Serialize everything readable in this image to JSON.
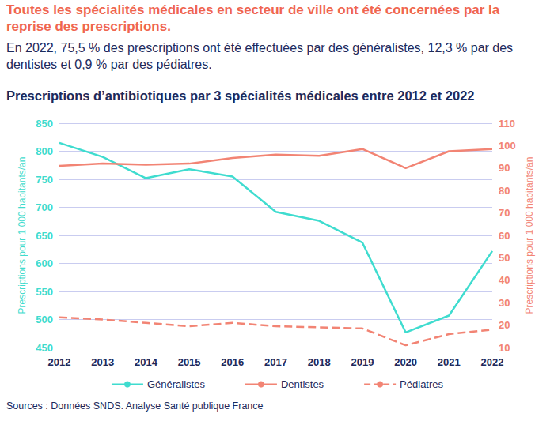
{
  "chart_data": {
    "type": "line",
    "headline": "Toutes les spécialités médicales en secteur de ville ont été concernées par la reprise des prescriptions.",
    "subtitle": "En 2022, 75,5 % des prescriptions ont été effectuées par des généralistes, 12,3 % par des dentistes et 0,9 % par des pédiatres.",
    "title": "Prescriptions d’antibiotiques par 3 spécialités médicales entre 2012 et 2022",
    "source": "Sources : Données SNDS. Analyse Santé publique France",
    "ylabel": "Prescriptions pour 1 000 habitants/an",
    "y2label": "Prescriptions pour 1 000 habitants/an",
    "categories": [
      "2012",
      "2013",
      "2014",
      "2015",
      "2016",
      "2017",
      "2018",
      "2019",
      "2020",
      "2021",
      "2022"
    ],
    "ylim": [
      450,
      850
    ],
    "yticks": [
      450,
      500,
      550,
      600,
      650,
      700,
      750,
      800,
      850
    ],
    "y2lim": [
      10,
      110
    ],
    "y2ticks": [
      10,
      20,
      30,
      40,
      50,
      60,
      70,
      80,
      90,
      100,
      110
    ],
    "grid": true,
    "legend": "bottom",
    "series": [
      {
        "name": "Généralistes",
        "color": "#3fdccf",
        "line_style": "solid",
        "marker": "none",
        "values": [
          815,
          790,
          752,
          768,
          755,
          692,
          676,
          637,
          477,
          507,
          622
        ]
      },
      {
        "name": "Dentistes",
        "color": "#f28474",
        "axis": "y2",
        "line_style": "solid",
        "marker": "none",
        "values": [
          91,
          92,
          91.5,
          92,
          94.5,
          96,
          95.5,
          98.5,
          90,
          97.5,
          98.5
        ]
      },
      {
        "name": "Pédiatres",
        "color": "#f28474",
        "axis": "y2",
        "line_style": "dashed",
        "marker": "none",
        "values": [
          23.5,
          22.5,
          21,
          19.5,
          21,
          19.5,
          19,
          18.5,
          11,
          16,
          18
        ]
      }
    ]
  }
}
